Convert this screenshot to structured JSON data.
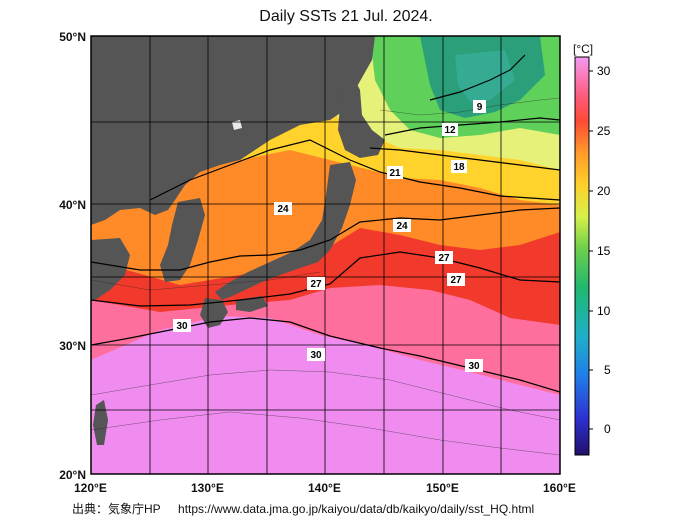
{
  "title": "Daily SSTs 21 Jul. 2024.",
  "units": "[°C]",
  "lat_labels": [
    "50°N",
    "40°N",
    "30°N",
    "20°N"
  ],
  "lon_labels": [
    "120°E",
    "130°E",
    "140°E",
    "150°E",
    "160°E"
  ],
  "colorbar_ticks": [
    "30",
    "25",
    "20",
    "15",
    "10",
    "5",
    "0"
  ],
  "contour_labels": [
    "9",
    "12",
    "18",
    "21",
    "24",
    "24",
    "27",
    "27",
    "27",
    "30",
    "30",
    "30"
  ],
  "source_label": "出典：気象庁HP",
  "source_url": "https://www.data.jma.go.jp/kaiyou/data/db/kaikyo/daily/sst_HQ.html",
  "colors": {
    "land": "#555555",
    "sst_30": "#f08cf0",
    "sst_28": "#ff6f86",
    "sst_27": "#f13a2b",
    "sst_24": "#ff8a28",
    "sst_21": "#ffd22c",
    "sst_18": "#e6f17a",
    "sst_12": "#5fd05a",
    "sst_9": "#2b8e5f"
  }
}
